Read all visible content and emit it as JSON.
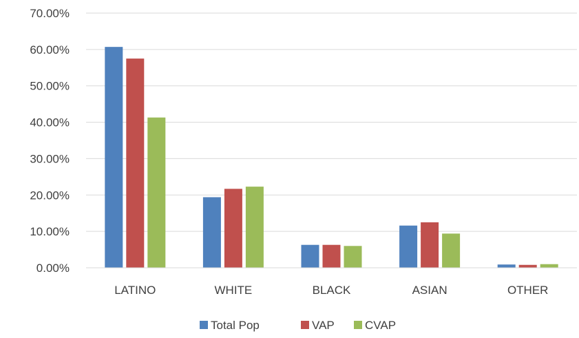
{
  "chart_data": {
    "type": "bar",
    "categories": [
      "LATINO",
      "WHITE",
      "BLACK",
      "ASIAN",
      "OTHER"
    ],
    "series": [
      {
        "name": "Total Pop",
        "values": [
          60.7,
          19.4,
          6.3,
          11.6,
          0.9
        ]
      },
      {
        "name": "VAP",
        "values": [
          57.5,
          21.7,
          6.3,
          12.5,
          0.8
        ]
      },
      {
        "name": "CVAP",
        "values": [
          41.3,
          22.3,
          6.0,
          9.4,
          1.0
        ]
      }
    ],
    "colors": [
      "#4f81bd",
      "#c0504d",
      "#9bbb59"
    ],
    "title": "",
    "xlabel": "",
    "ylabel": "",
    "ylim": [
      0,
      70
    ],
    "yticks": [
      "0.00%",
      "10.00%",
      "20.00%",
      "30.00%",
      "40.00%",
      "50.00%",
      "60.00%",
      "70.00%"
    ],
    "grid": true,
    "legend_position": "bottom"
  }
}
